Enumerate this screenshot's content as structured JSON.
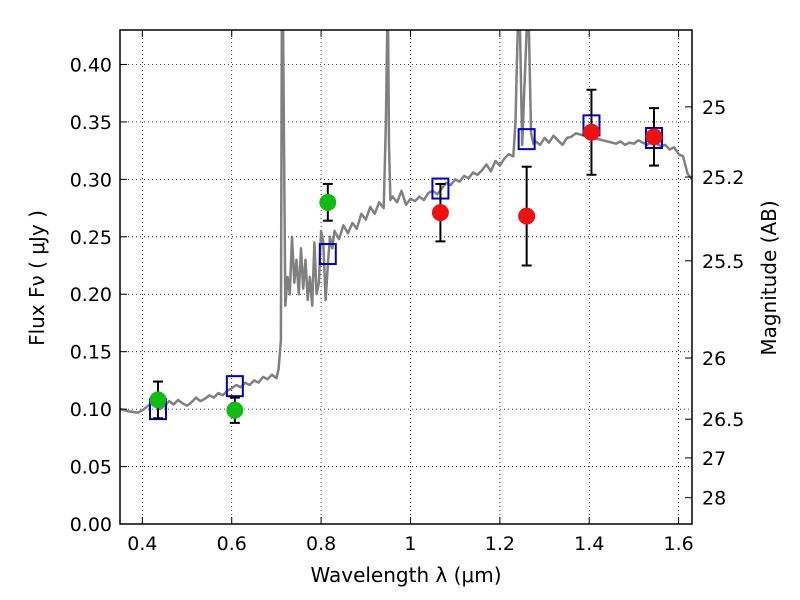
{
  "chart_data": {
    "type": "scatter",
    "xlabel": "Wavelength  λ (μm)",
    "ylabel": "Flux  Fν  ( μJy )",
    "y2label": "Magnitude (AB)",
    "xlim": [
      0.35,
      1.63
    ],
    "ylim": [
      0.0,
      0.43
    ],
    "grid": true,
    "x_ticks": [
      0.4,
      0.6,
      0.8,
      1.0,
      1.2,
      1.4,
      1.6
    ],
    "x_tick_labels": [
      "0.4",
      "0.6",
      "0.8",
      "1",
      "1.2",
      "1.4",
      "1.6"
    ],
    "y_ticks": [
      0.0,
      0.05,
      0.1,
      0.15,
      0.2,
      0.25,
      0.3,
      0.35,
      0.4
    ],
    "y_tick_labels": [
      "0.00",
      "0.05",
      "0.10",
      "0.15",
      "0.20",
      "0.25",
      "0.30",
      "0.35",
      "0.40"
    ],
    "mag_ticks": [
      {
        "label": "25",
        "flux": 0.3631
      },
      {
        "label": "25.2",
        "flux": 0.302
      },
      {
        "label": "25.5",
        "flux": 0.2291
      },
      {
        "label": "26",
        "flux": 0.1445
      },
      {
        "label": "26.5",
        "flux": 0.0912
      },
      {
        "label": "27",
        "flux": 0.0575
      },
      {
        "label": "28",
        "flux": 0.0229
      }
    ],
    "sed_model": {
      "color": "#808080",
      "x": [
        0.35,
        0.37,
        0.39,
        0.4,
        0.41,
        0.42,
        0.43,
        0.44,
        0.45,
        0.46,
        0.47,
        0.48,
        0.49,
        0.5,
        0.51,
        0.52,
        0.53,
        0.54,
        0.55,
        0.56,
        0.57,
        0.58,
        0.59,
        0.6,
        0.61,
        0.62,
        0.63,
        0.64,
        0.65,
        0.66,
        0.67,
        0.68,
        0.69,
        0.7,
        0.705,
        0.71,
        0.712,
        0.715,
        0.72,
        0.725,
        0.73,
        0.735,
        0.74,
        0.745,
        0.75,
        0.755,
        0.76,
        0.765,
        0.77,
        0.775,
        0.78,
        0.785,
        0.79,
        0.795,
        0.8,
        0.805,
        0.81,
        0.815,
        0.82,
        0.825,
        0.83,
        0.84,
        0.85,
        0.86,
        0.87,
        0.88,
        0.89,
        0.9,
        0.91,
        0.92,
        0.93,
        0.94,
        0.945,
        0.948,
        0.95,
        0.952,
        0.955,
        0.96,
        0.97,
        0.98,
        0.99,
        1.0,
        1.01,
        1.02,
        1.03,
        1.04,
        1.05,
        1.06,
        1.07,
        1.08,
        1.09,
        1.1,
        1.11,
        1.12,
        1.13,
        1.14,
        1.15,
        1.16,
        1.17,
        1.18,
        1.19,
        1.2,
        1.21,
        1.22,
        1.23,
        1.235,
        1.24,
        1.245,
        1.25,
        1.255,
        1.26,
        1.265,
        1.27,
        1.275,
        1.28,
        1.29,
        1.3,
        1.31,
        1.32,
        1.33,
        1.34,
        1.35,
        1.36,
        1.37,
        1.38,
        1.39,
        1.4,
        1.41,
        1.42,
        1.43,
        1.44,
        1.45,
        1.46,
        1.47,
        1.48,
        1.49,
        1.5,
        1.51,
        1.52,
        1.53,
        1.54,
        1.55,
        1.56,
        1.57,
        1.58,
        1.59,
        1.6,
        1.61,
        1.62,
        1.63
      ],
      "y": [
        0.1,
        0.098,
        0.097,
        0.099,
        0.102,
        0.105,
        0.103,
        0.1,
        0.103,
        0.107,
        0.104,
        0.108,
        0.105,
        0.103,
        0.106,
        0.11,
        0.107,
        0.109,
        0.112,
        0.11,
        0.114,
        0.112,
        0.116,
        0.118,
        0.121,
        0.119,
        0.123,
        0.121,
        0.125,
        0.123,
        0.128,
        0.126,
        0.13,
        0.127,
        0.135,
        0.16,
        0.43,
        0.43,
        0.19,
        0.215,
        0.2,
        0.25,
        0.21,
        0.23,
        0.2,
        0.24,
        0.205,
        0.23,
        0.195,
        0.215,
        0.19,
        0.245,
        0.2,
        0.21,
        0.255,
        0.245,
        0.195,
        0.225,
        0.25,
        0.24,
        0.255,
        0.248,
        0.26,
        0.253,
        0.262,
        0.257,
        0.27,
        0.265,
        0.276,
        0.27,
        0.28,
        0.275,
        0.35,
        0.43,
        0.43,
        0.33,
        0.282,
        0.285,
        0.28,
        0.29,
        0.278,
        0.283,
        0.281,
        0.285,
        0.282,
        0.288,
        0.29,
        0.287,
        0.292,
        0.297,
        0.295,
        0.3,
        0.298,
        0.303,
        0.301,
        0.306,
        0.304,
        0.308,
        0.313,
        0.307,
        0.316,
        0.312,
        0.318,
        0.322,
        0.32,
        0.35,
        0.43,
        0.43,
        0.33,
        0.38,
        0.43,
        0.43,
        0.34,
        0.331,
        0.333,
        0.33,
        0.336,
        0.332,
        0.338,
        0.334,
        0.33,
        0.336,
        0.337,
        0.34,
        0.339,
        0.338,
        0.337,
        0.336,
        0.335,
        0.334,
        0.333,
        0.332,
        0.331,
        0.333,
        0.33,
        0.332,
        0.331,
        0.334,
        0.332,
        0.33,
        0.333,
        0.331,
        0.329,
        0.33,
        0.326,
        0.328,
        0.322,
        0.32,
        0.305,
        0.3
      ]
    },
    "series": [
      {
        "marker": "square",
        "color": "#0000cc",
        "x": [
          0.435,
          0.607,
          0.815,
          1.067,
          1.26,
          1.405,
          1.545
        ],
        "y": [
          0.1,
          0.12,
          0.235,
          0.292,
          0.335,
          0.347,
          0.336
        ]
      },
      {
        "marker": "circle",
        "color": "#11bb11",
        "x": [
          0.435,
          0.607,
          0.815
        ],
        "y": [
          0.108,
          0.099,
          0.28
        ],
        "err": [
          0.016,
          0.011,
          0.016
        ]
      },
      {
        "marker": "circle",
        "color": "#ee1111",
        "x": [
          1.067,
          1.26,
          1.405,
          1.545
        ],
        "y": [
          0.271,
          0.268,
          0.341,
          0.337
        ],
        "err": [
          0.025,
          0.043,
          0.037,
          0.025
        ]
      }
    ]
  }
}
